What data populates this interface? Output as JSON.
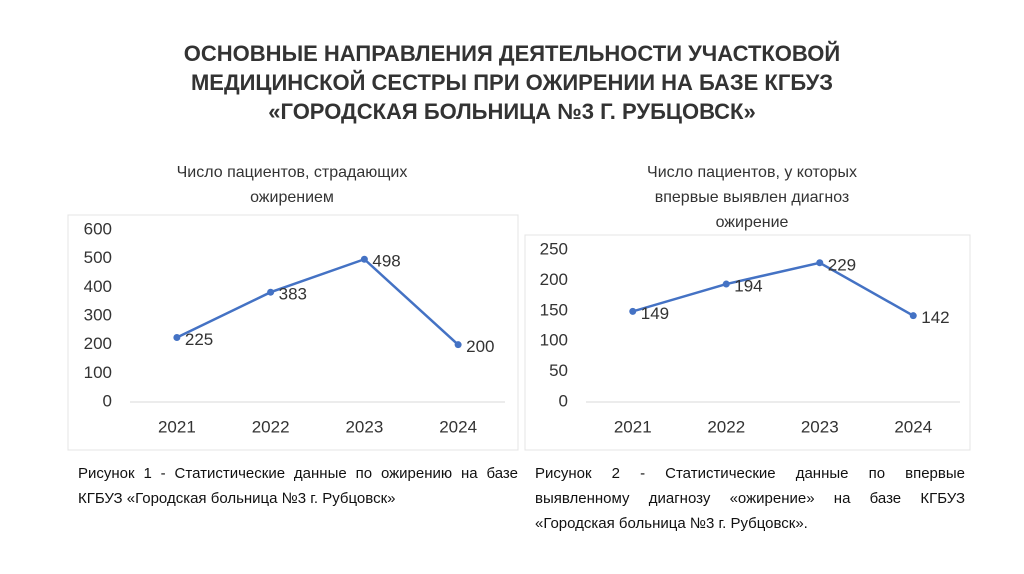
{
  "slide_title": [
    "ОСНОВНЫЕ НАПРАВЛЕНИЯ ДЕЯТЕЛЬНОСТИ УЧАСТКОВОЙ",
    "МЕДИЦИНСКОЙ СЕСТРЫ ПРИ ОЖИРЕНИИ НА БАЗЕ КГБУЗ",
    "«ГОРОДСКАЯ БОЛЬНИЦА №3 Г. РУБЦОВСК»"
  ],
  "captions": [
    "Рисунок 1 - Статистические данные по ожирению на базе КГБУЗ «Городская больница №3 г. Рубцовск»",
    "Рисунок 2 - Статистические данные по впервые выявленному диагнозу «ожирение» на базе КГБУЗ «Городская больница №3 г. Рубцовск»."
  ],
  "chart_data": [
    {
      "type": "line",
      "title": [
        "Число пациентов, страдающих",
        "ожирением"
      ],
      "categories": [
        "2021",
        "2022",
        "2023",
        "2024"
      ],
      "values": [
        225,
        383,
        498,
        200
      ],
      "color": "#4472c4",
      "ylim": [
        0,
        600
      ],
      "yticks": [
        0,
        100,
        200,
        300,
        400,
        500,
        600
      ],
      "data_labels": true
    },
    {
      "type": "line",
      "title": [
        "Число пациентов, у которых",
        "впервые выявлен диагноз",
        "ожирение"
      ],
      "categories": [
        "2021",
        "2022",
        "2023",
        "2024"
      ],
      "values": [
        149,
        194,
        229,
        142
      ],
      "color": "#4472c4",
      "ylim": [
        0,
        250
      ],
      "yticks": [
        0,
        50,
        100,
        150,
        200,
        250
      ],
      "data_labels": true
    }
  ]
}
